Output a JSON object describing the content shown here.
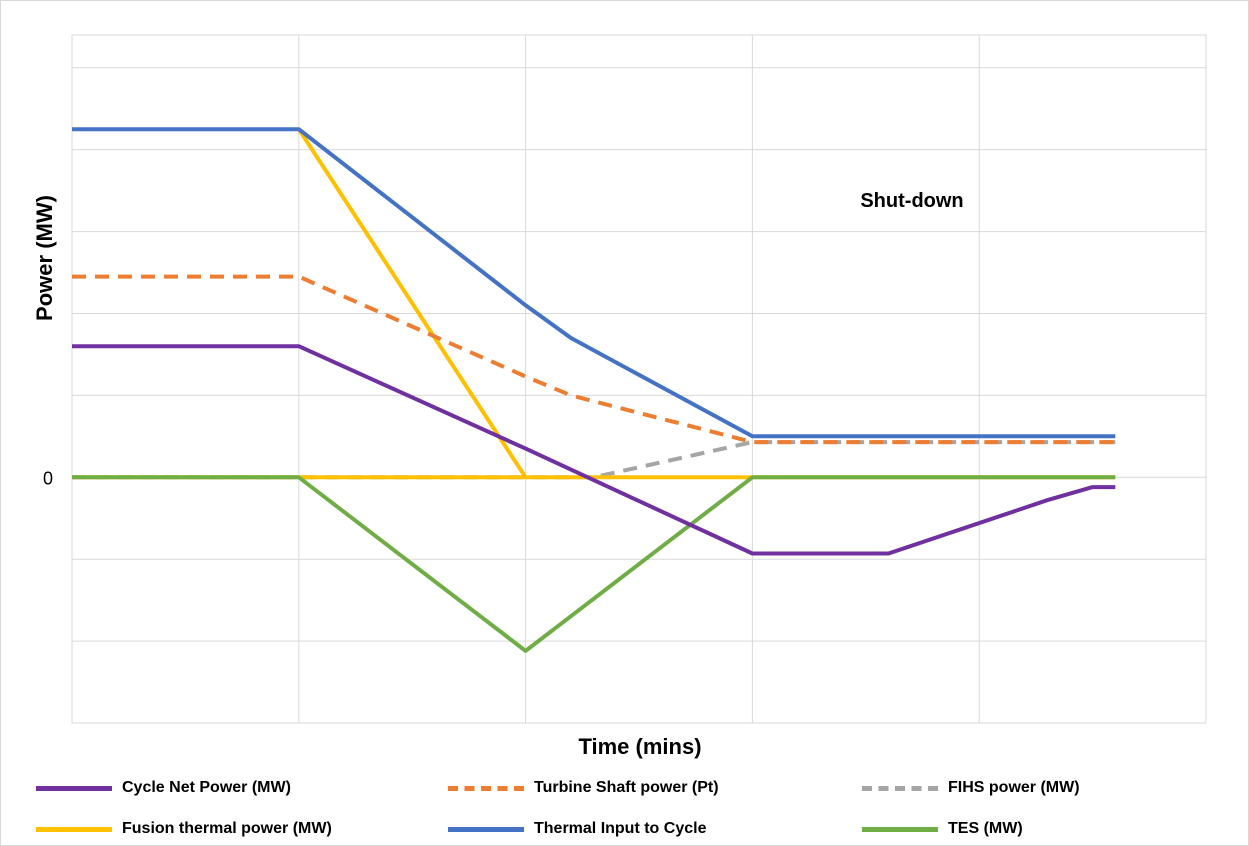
{
  "chart_data": {
    "type": "line",
    "title": "",
    "xlabel": "Time (mins)",
    "ylabel": "Power (MW)",
    "annotation": "Shut-down",
    "y_tick_labels": [
      {
        "value": 0,
        "label": "0"
      }
    ],
    "ylim": [
      -3,
      5.4
    ],
    "xlim": [
      0,
      5
    ],
    "grid": true,
    "legend_placement": "bottom",
    "series": [
      {
        "name": "Cycle Net Power (MW)",
        "color": "#7030A0",
        "dash": false,
        "points": [
          [
            0,
            1.6
          ],
          [
            1,
            1.6
          ],
          [
            2,
            0.35
          ],
          [
            3,
            -0.93
          ],
          [
            3.6,
            -0.93
          ],
          [
            4.3,
            -0.28
          ],
          [
            4.5,
            -0.12
          ],
          [
            4.6,
            -0.12
          ]
        ]
      },
      {
        "name": "Turbine Shaft power (Pt)",
        "color": "#ED7D31",
        "dash": true,
        "points": [
          [
            0,
            2.45
          ],
          [
            1,
            2.45
          ],
          [
            2,
            1.23
          ],
          [
            2.2,
            1.0
          ],
          [
            3,
            0.43
          ],
          [
            4.6,
            0.43
          ]
        ]
      },
      {
        "name": "FIHS power (MW)",
        "color": "#A5A5A5",
        "dash": true,
        "points": [
          [
            0,
            0
          ],
          [
            2.3,
            0
          ],
          [
            3,
            0.43
          ],
          [
            4.6,
            0.43
          ]
        ]
      },
      {
        "name": "Fusion thermal power (MW)",
        "color": "#FFC000",
        "dash": false,
        "points": [
          [
            0,
            0
          ],
          [
            1,
            0
          ],
          [
            2,
            0
          ],
          [
            4.6,
            0
          ]
        ],
        "extra_segment": [
          [
            1,
            4.25
          ],
          [
            2,
            0
          ]
        ]
      },
      {
        "name": "Thermal Input to Cycle",
        "color": "#4472C4",
        "dash": false,
        "points": [
          [
            0,
            4.25
          ],
          [
            1,
            4.25
          ],
          [
            2,
            2.1
          ],
          [
            2.2,
            1.7
          ],
          [
            3,
            0.5
          ],
          [
            4.6,
            0.5
          ]
        ]
      },
      {
        "name": "TES (MW)",
        "color": "#70AD47",
        "dash": false,
        "points": [
          [
            0,
            0
          ],
          [
            1,
            0
          ],
          [
            2,
            -2.12
          ],
          [
            3,
            0
          ],
          [
            4.6,
            0
          ]
        ]
      }
    ]
  }
}
